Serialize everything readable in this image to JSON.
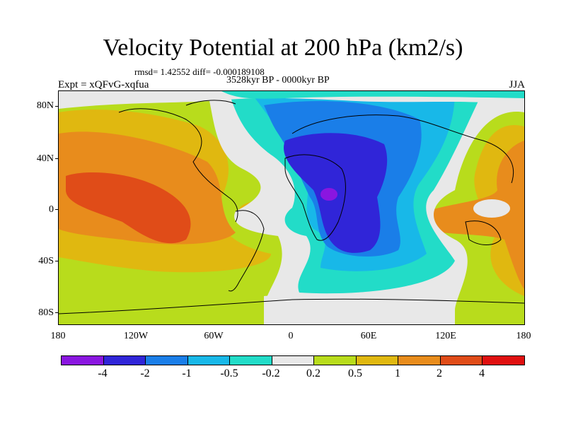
{
  "title": "Velocity Potential at 200 hPa (km2/s)",
  "stats": "rmsd= 1.42552 diff= -0.000189108",
  "period": "3528kyr BP - 0000kyr BP",
  "experiment": "Expt = xQFvG-xqfua",
  "season": "JJA",
  "map": {
    "projection": "cylindrical equidistant",
    "lat_labels": [
      "80N",
      "40N",
      "0",
      "40S",
      "80S"
    ],
    "lon_labels": [
      "180",
      "120W",
      "60W",
      "0",
      "60E",
      "120E",
      "180"
    ],
    "field": "velocity potential difference",
    "units": "km2/s"
  },
  "colorbar": {
    "labels": [
      "-4",
      "-2",
      "-1",
      "-0.5",
      "-0.2",
      "0.2",
      "0.5",
      "1",
      "2",
      "4"
    ],
    "colors": [
      "#8a16e0",
      "#3025d8",
      "#1a7ee8",
      "#18b8e8",
      "#22dcc8",
      "#e8e8e8",
      "#b8dc1c",
      "#e0b810",
      "#e88c1c",
      "#e04c18",
      "#e01010"
    ]
  }
}
